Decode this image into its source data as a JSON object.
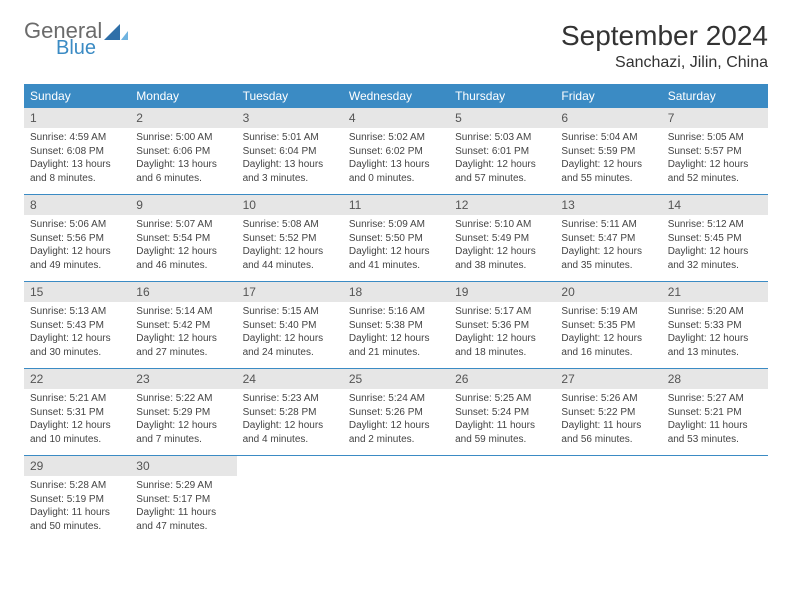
{
  "logo": {
    "general": "General",
    "blue": "Blue"
  },
  "title": "September 2024",
  "location": "Sanchazi, Jilin, China",
  "colors": {
    "header_bg": "#3b8bc4",
    "daynum_bg": "#e6e6e6",
    "text": "#333333",
    "logo_gray": "#6b6b6b",
    "logo_blue": "#3b8bc4"
  },
  "dow": [
    "Sunday",
    "Monday",
    "Tuesday",
    "Wednesday",
    "Thursday",
    "Friday",
    "Saturday"
  ],
  "weeks": [
    [
      {
        "n": "1",
        "sr": "Sunrise: 4:59 AM",
        "ss": "Sunset: 6:08 PM",
        "d1": "Daylight: 13 hours",
        "d2": "and 8 minutes."
      },
      {
        "n": "2",
        "sr": "Sunrise: 5:00 AM",
        "ss": "Sunset: 6:06 PM",
        "d1": "Daylight: 13 hours",
        "d2": "and 6 minutes."
      },
      {
        "n": "3",
        "sr": "Sunrise: 5:01 AM",
        "ss": "Sunset: 6:04 PM",
        "d1": "Daylight: 13 hours",
        "d2": "and 3 minutes."
      },
      {
        "n": "4",
        "sr": "Sunrise: 5:02 AM",
        "ss": "Sunset: 6:02 PM",
        "d1": "Daylight: 13 hours",
        "d2": "and 0 minutes."
      },
      {
        "n": "5",
        "sr": "Sunrise: 5:03 AM",
        "ss": "Sunset: 6:01 PM",
        "d1": "Daylight: 12 hours",
        "d2": "and 57 minutes."
      },
      {
        "n": "6",
        "sr": "Sunrise: 5:04 AM",
        "ss": "Sunset: 5:59 PM",
        "d1": "Daylight: 12 hours",
        "d2": "and 55 minutes."
      },
      {
        "n": "7",
        "sr": "Sunrise: 5:05 AM",
        "ss": "Sunset: 5:57 PM",
        "d1": "Daylight: 12 hours",
        "d2": "and 52 minutes."
      }
    ],
    [
      {
        "n": "8",
        "sr": "Sunrise: 5:06 AM",
        "ss": "Sunset: 5:56 PM",
        "d1": "Daylight: 12 hours",
        "d2": "and 49 minutes."
      },
      {
        "n": "9",
        "sr": "Sunrise: 5:07 AM",
        "ss": "Sunset: 5:54 PM",
        "d1": "Daylight: 12 hours",
        "d2": "and 46 minutes."
      },
      {
        "n": "10",
        "sr": "Sunrise: 5:08 AM",
        "ss": "Sunset: 5:52 PM",
        "d1": "Daylight: 12 hours",
        "d2": "and 44 minutes."
      },
      {
        "n": "11",
        "sr": "Sunrise: 5:09 AM",
        "ss": "Sunset: 5:50 PM",
        "d1": "Daylight: 12 hours",
        "d2": "and 41 minutes."
      },
      {
        "n": "12",
        "sr": "Sunrise: 5:10 AM",
        "ss": "Sunset: 5:49 PM",
        "d1": "Daylight: 12 hours",
        "d2": "and 38 minutes."
      },
      {
        "n": "13",
        "sr": "Sunrise: 5:11 AM",
        "ss": "Sunset: 5:47 PM",
        "d1": "Daylight: 12 hours",
        "d2": "and 35 minutes."
      },
      {
        "n": "14",
        "sr": "Sunrise: 5:12 AM",
        "ss": "Sunset: 5:45 PM",
        "d1": "Daylight: 12 hours",
        "d2": "and 32 minutes."
      }
    ],
    [
      {
        "n": "15",
        "sr": "Sunrise: 5:13 AM",
        "ss": "Sunset: 5:43 PM",
        "d1": "Daylight: 12 hours",
        "d2": "and 30 minutes."
      },
      {
        "n": "16",
        "sr": "Sunrise: 5:14 AM",
        "ss": "Sunset: 5:42 PM",
        "d1": "Daylight: 12 hours",
        "d2": "and 27 minutes."
      },
      {
        "n": "17",
        "sr": "Sunrise: 5:15 AM",
        "ss": "Sunset: 5:40 PM",
        "d1": "Daylight: 12 hours",
        "d2": "and 24 minutes."
      },
      {
        "n": "18",
        "sr": "Sunrise: 5:16 AM",
        "ss": "Sunset: 5:38 PM",
        "d1": "Daylight: 12 hours",
        "d2": "and 21 minutes."
      },
      {
        "n": "19",
        "sr": "Sunrise: 5:17 AM",
        "ss": "Sunset: 5:36 PM",
        "d1": "Daylight: 12 hours",
        "d2": "and 18 minutes."
      },
      {
        "n": "20",
        "sr": "Sunrise: 5:19 AM",
        "ss": "Sunset: 5:35 PM",
        "d1": "Daylight: 12 hours",
        "d2": "and 16 minutes."
      },
      {
        "n": "21",
        "sr": "Sunrise: 5:20 AM",
        "ss": "Sunset: 5:33 PM",
        "d1": "Daylight: 12 hours",
        "d2": "and 13 minutes."
      }
    ],
    [
      {
        "n": "22",
        "sr": "Sunrise: 5:21 AM",
        "ss": "Sunset: 5:31 PM",
        "d1": "Daylight: 12 hours",
        "d2": "and 10 minutes."
      },
      {
        "n": "23",
        "sr": "Sunrise: 5:22 AM",
        "ss": "Sunset: 5:29 PM",
        "d1": "Daylight: 12 hours",
        "d2": "and 7 minutes."
      },
      {
        "n": "24",
        "sr": "Sunrise: 5:23 AM",
        "ss": "Sunset: 5:28 PM",
        "d1": "Daylight: 12 hours",
        "d2": "and 4 minutes."
      },
      {
        "n": "25",
        "sr": "Sunrise: 5:24 AM",
        "ss": "Sunset: 5:26 PM",
        "d1": "Daylight: 12 hours",
        "d2": "and 2 minutes."
      },
      {
        "n": "26",
        "sr": "Sunrise: 5:25 AM",
        "ss": "Sunset: 5:24 PM",
        "d1": "Daylight: 11 hours",
        "d2": "and 59 minutes."
      },
      {
        "n": "27",
        "sr": "Sunrise: 5:26 AM",
        "ss": "Sunset: 5:22 PM",
        "d1": "Daylight: 11 hours",
        "d2": "and 56 minutes."
      },
      {
        "n": "28",
        "sr": "Sunrise: 5:27 AM",
        "ss": "Sunset: 5:21 PM",
        "d1": "Daylight: 11 hours",
        "d2": "and 53 minutes."
      }
    ],
    [
      {
        "n": "29",
        "sr": "Sunrise: 5:28 AM",
        "ss": "Sunset: 5:19 PM",
        "d1": "Daylight: 11 hours",
        "d2": "and 50 minutes."
      },
      {
        "n": "30",
        "sr": "Sunrise: 5:29 AM",
        "ss": "Sunset: 5:17 PM",
        "d1": "Daylight: 11 hours",
        "d2": "and 47 minutes."
      },
      {
        "empty": true
      },
      {
        "empty": true
      },
      {
        "empty": true
      },
      {
        "empty": true
      },
      {
        "empty": true
      }
    ]
  ]
}
